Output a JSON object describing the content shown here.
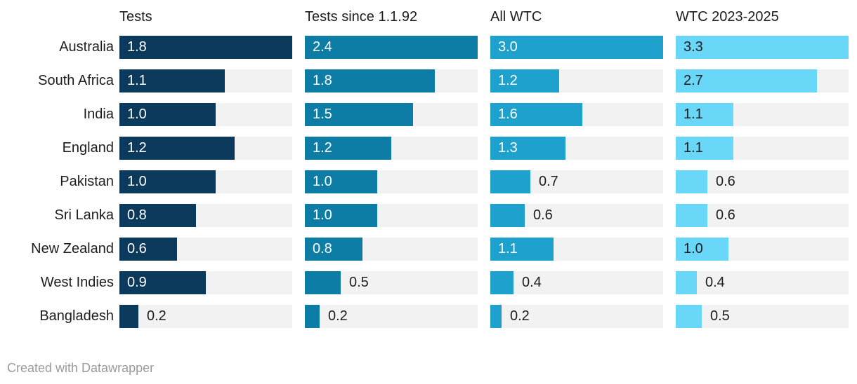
{
  "chart_data": {
    "type": "bar",
    "orientation": "horizontal",
    "title": "",
    "xlabel": "",
    "ylabel": "",
    "grid": false,
    "legend_position": "column-headers",
    "categories": [
      "Australia",
      "South Africa",
      "India",
      "England",
      "Pakistan",
      "Sri Lanka",
      "New Zealand",
      "West Indies",
      "Bangladesh"
    ],
    "series": [
      {
        "name": "Tests",
        "color": "#0c3a5d",
        "inside_label_color": "#ffffff",
        "values": [
          1.8,
          1.1,
          1.0,
          1.2,
          1.0,
          0.8,
          0.6,
          0.9,
          0.2
        ]
      },
      {
        "name": "Tests since 1.1.92",
        "color": "#0e7da6",
        "inside_label_color": "#ffffff",
        "values": [
          2.4,
          1.8,
          1.5,
          1.2,
          1.0,
          1.0,
          0.8,
          0.5,
          0.2
        ]
      },
      {
        "name": "All WTC",
        "color": "#1ea2cd",
        "inside_label_color": "#ffffff",
        "values": [
          3.0,
          1.2,
          1.6,
          1.3,
          0.7,
          0.6,
          1.1,
          0.4,
          0.2
        ]
      },
      {
        "name": "WTC 2023-2025",
        "color": "#68d7f8",
        "inside_label_color": "#1d1d1d",
        "values": [
          3.3,
          2.7,
          1.1,
          1.1,
          0.6,
          0.6,
          1.0,
          0.4,
          0.5
        ]
      }
    ],
    "x_max_per_column": [
      1.8,
      2.4,
      3.0,
      3.3
    ],
    "value_decimals": 1,
    "outside_label_color": "#1d1d1d",
    "track_color": "#f2f2f2"
  },
  "footer": {
    "credit": "Created with Datawrapper"
  }
}
